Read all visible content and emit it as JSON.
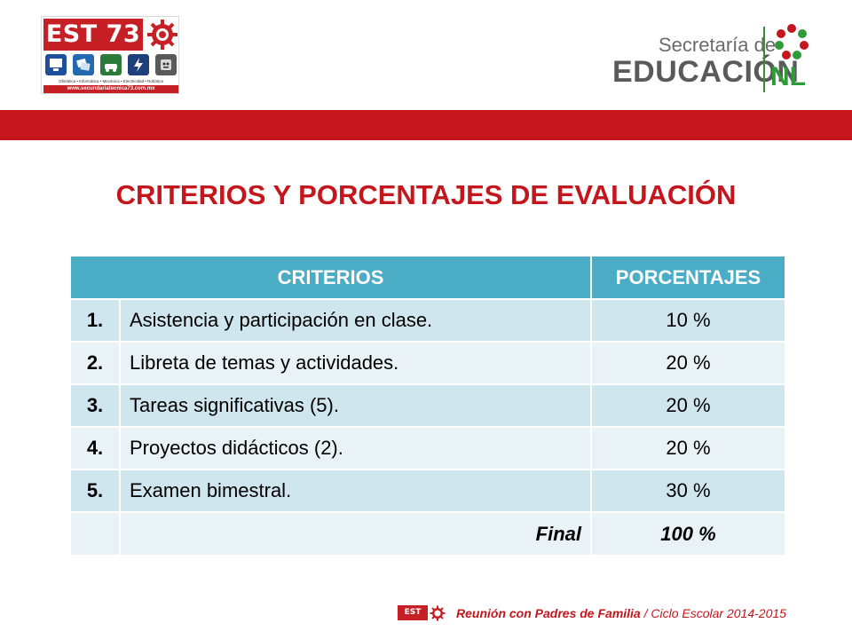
{
  "header": {
    "school_logo": {
      "title": "EST 73",
      "subjects": "Ofimática • Informática • Mecánica • Electricidad • Robótica",
      "website": "www.secundariatecnica73.com.mx",
      "icons": [
        "computer-icon",
        "informatics-icon",
        "mechanics-icon",
        "electricity-icon",
        "robotics-icon"
      ]
    },
    "secretaria_logo": {
      "top_text": "Secretaría de",
      "main_text": "EDUCACIÓN",
      "emblem_text": "NL"
    }
  },
  "colors": {
    "brand_red": "#c4161c",
    "table_header": "#4bacc6",
    "row_dark": "#d0e6ef",
    "row_light": "#e9f2f6",
    "nl_green": "#2f9a3a"
  },
  "title": "CRITERIOS Y PORCENTAJES DE EVALUACIÓN",
  "table": {
    "headers": [
      "CRITERIOS",
      "PORCENTAJES"
    ],
    "rows": [
      {
        "num": "1.",
        "criterion": "Asistencia y participación en clase.",
        "percent": "10 %"
      },
      {
        "num": "2.",
        "criterion": "Libreta de temas y actividades.",
        "percent": "20 %"
      },
      {
        "num": "3.",
        "criterion": "Tareas significativas (5).",
        "percent": "20 %"
      },
      {
        "num": "4.",
        "criterion": "Proyectos didácticos (2).",
        "percent": "20 %"
      },
      {
        "num": "5.",
        "criterion": "Examen bimestral.",
        "percent": "30 %"
      }
    ],
    "final_label": "Final",
    "final_value": "100 %"
  },
  "footer": {
    "logo_text": "EST 73",
    "event": "Reunión con Padres de Familia",
    "separator": " / ",
    "cycle": "Ciclo Escolar 2014-2015"
  }
}
